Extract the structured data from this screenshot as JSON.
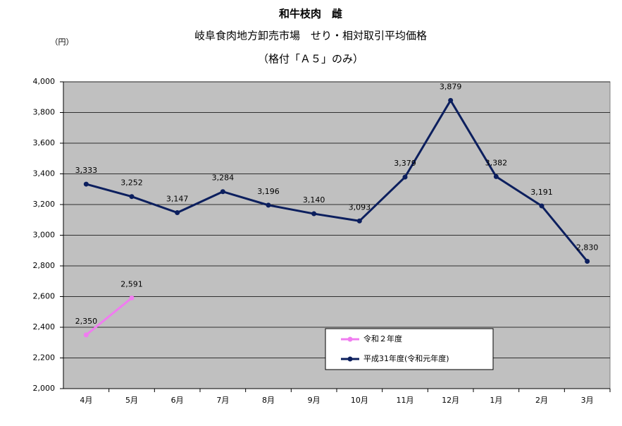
{
  "chart_data": {
    "type": "line",
    "title": "和牛枝肉　雌",
    "subtitle": "岐阜食肉地方卸売市場　せり・相対取引平均価格",
    "subtitle2": "（格付「Ａ５」のみ）",
    "y_label": "（円）",
    "categories": [
      "4月",
      "5月",
      "6月",
      "7月",
      "8月",
      "9月",
      "10月",
      "11月",
      "12月",
      "1月",
      "2月",
      "3月"
    ],
    "series": [
      {
        "name": "令和２年度",
        "color": "#f07cf0",
        "values": [
          2350,
          2591,
          null,
          null,
          null,
          null,
          null,
          null,
          null,
          null,
          null,
          null
        ],
        "value_labels": [
          "2,350",
          "2,591",
          null,
          null,
          null,
          null,
          null,
          null,
          null,
          null,
          null,
          null
        ]
      },
      {
        "name": "平成31年度(令和元年度)",
        "color": "#0c1f5e",
        "values": [
          3333,
          3252,
          3147,
          3284,
          3196,
          3140,
          3093,
          3379,
          3879,
          3382,
          3191,
          2830
        ],
        "value_labels": [
          "3,333",
          "3,252",
          "3,147",
          "3,284",
          "3,196",
          "3,140",
          "3,093",
          "3,379",
          "3,879",
          "3,382",
          "3,191",
          "2,830"
        ]
      }
    ],
    "ylim": [
      2000,
      4000
    ],
    "yticks": [
      {
        "value": 2000,
        "label": "2,000"
      },
      {
        "value": 2200,
        "label": "2,200"
      },
      {
        "value": 2400,
        "label": "2,400"
      },
      {
        "value": 2600,
        "label": "2,600"
      },
      {
        "value": 2800,
        "label": "2,800"
      },
      {
        "value": 3000,
        "label": "3,000"
      },
      {
        "value": 3200,
        "label": "3,200"
      },
      {
        "value": 3400,
        "label": "3,400"
      },
      {
        "value": 3600,
        "label": "3,600"
      },
      {
        "value": 3800,
        "label": "3,800"
      },
      {
        "value": 4000,
        "label": "4,000"
      }
    ],
    "grid": true,
    "legend": "lower right",
    "plot_background": "#c0c0c0"
  }
}
